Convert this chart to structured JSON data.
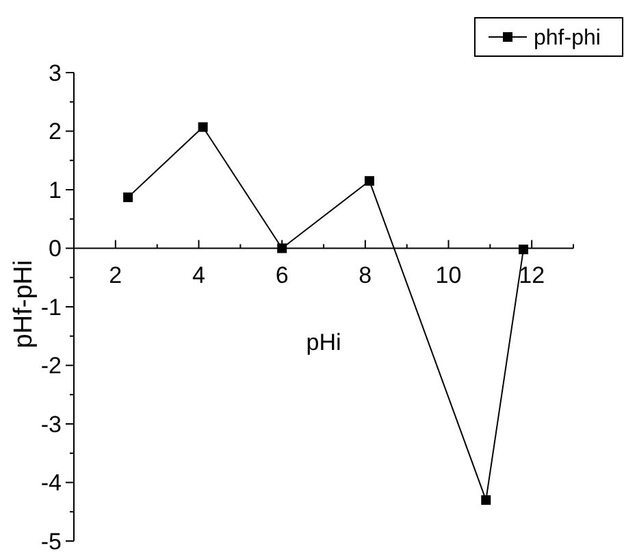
{
  "chart_data": {
    "type": "line",
    "xlabel": "pHi",
    "ylabel": "pHf-pHi",
    "xlim": [
      1,
      13
    ],
    "xticks": [
      {
        "value": 1,
        "label": null
      },
      2,
      {
        "value": 3,
        "label": null
      },
      4,
      {
        "value": 5,
        "label": null
      },
      6,
      {
        "value": 7,
        "label": null
      },
      8,
      {
        "value": 9,
        "label": null
      },
      10,
      {
        "value": 11,
        "label": null
      },
      12,
      {
        "value": 13,
        "label": null
      }
    ],
    "ylim": [
      -5,
      3
    ],
    "yticks": [
      -5,
      {
        "value": -4.5,
        "label": null
      },
      -4,
      {
        "value": -3.5,
        "label": null
      },
      -3,
      {
        "value": -2.5,
        "label": null
      },
      -2,
      {
        "value": -1.5,
        "label": null
      },
      -1,
      {
        "value": -0.5,
        "label": null
      },
      0,
      {
        "value": 0.5,
        "label": null
      },
      1,
      {
        "value": 1.5,
        "label": null
      },
      2,
      {
        "value": 2.5,
        "label": null
      },
      3
    ],
    "series": [
      {
        "name": "phf-phi",
        "color": "#000000",
        "x": [
          2.3,
          4.1,
          6.0,
          8.1,
          10.9,
          11.8
        ],
        "values": [
          0.87,
          2.07,
          0.0,
          1.15,
          -4.3,
          -0.02
        ]
      }
    ],
    "marker": "square",
    "line_style": "solid",
    "legend": "top right",
    "grid": false
  }
}
